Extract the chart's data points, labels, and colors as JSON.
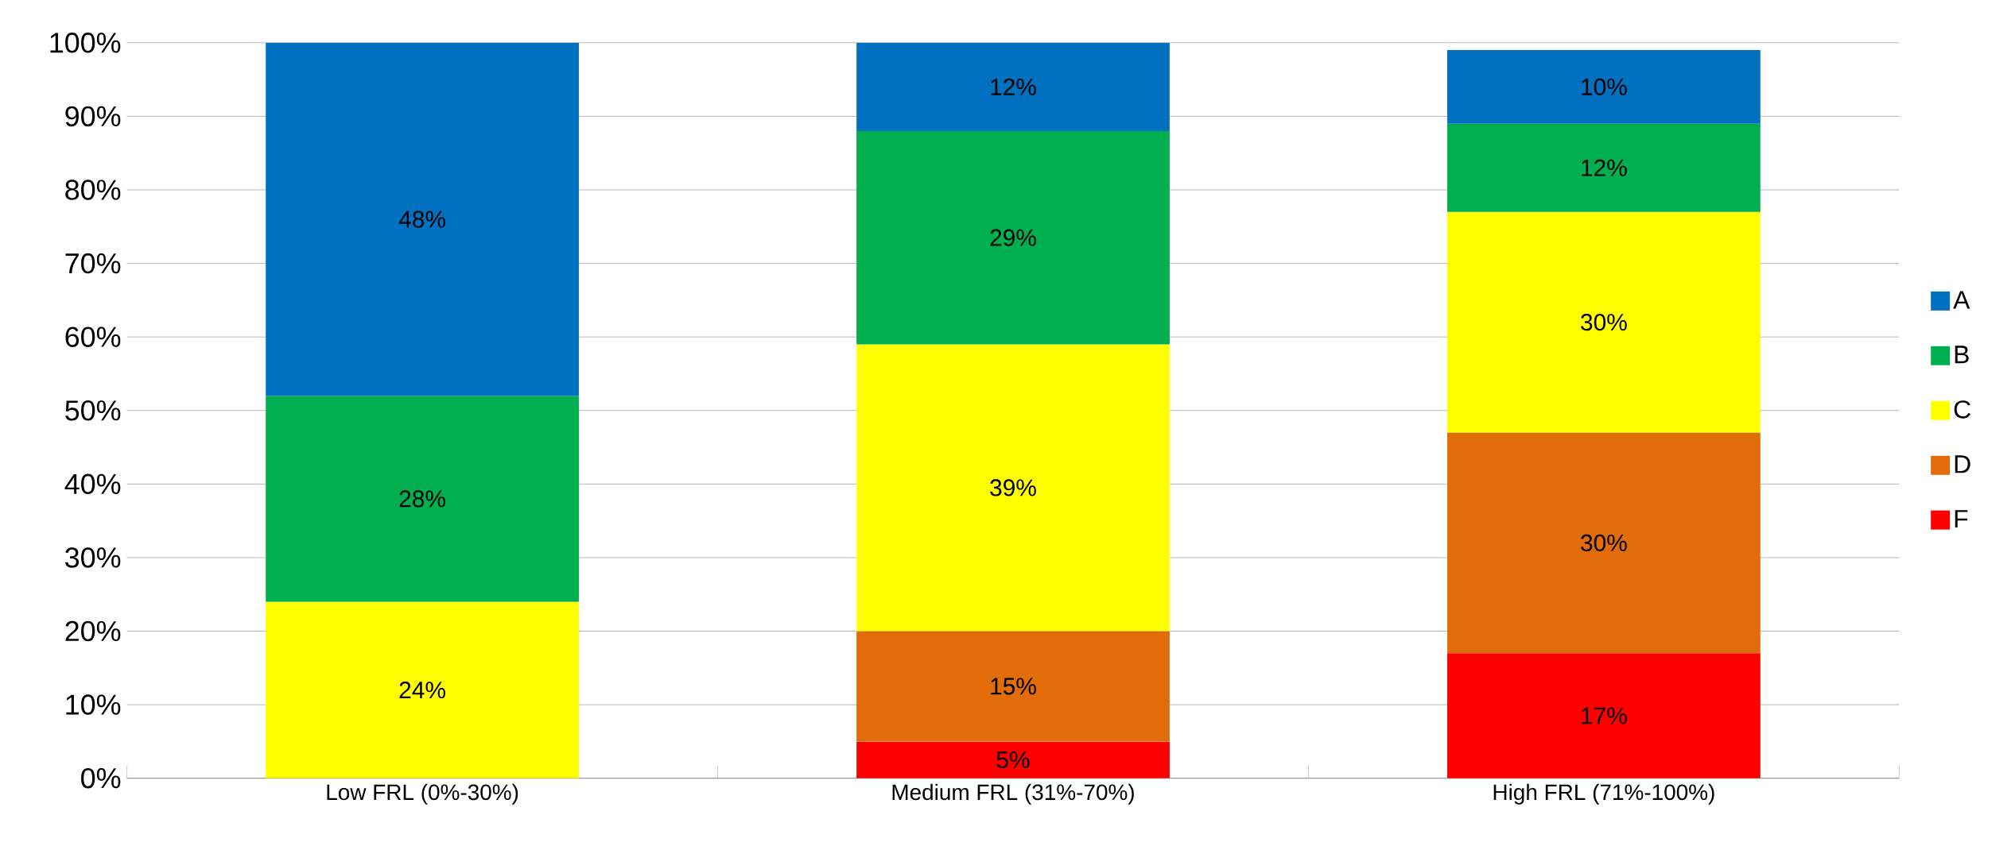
{
  "chart_data": {
    "type": "bar",
    "stacked": true,
    "categories": [
      "Low FRL (0%-30%)",
      "Medium FRL (31%-70%)",
      "High FRL (71%-100%)"
    ],
    "series": [
      {
        "name": "F",
        "color": "#ff0000",
        "values": [
          null,
          5,
          17
        ],
        "value_labels": [
          null,
          "5%",
          "17%"
        ]
      },
      {
        "name": "D",
        "color": "#e36c0a",
        "values": [
          null,
          15,
          30
        ],
        "value_labels": [
          null,
          "15%",
          "30%"
        ]
      },
      {
        "name": "C",
        "color": "#ffff00",
        "values": [
          24,
          39,
          30
        ],
        "value_labels": [
          "24%",
          "39%",
          "30%"
        ]
      },
      {
        "name": "B",
        "color": "#00b050",
        "values": [
          28,
          29,
          12
        ],
        "value_labels": [
          "28%",
          "29%",
          "12%"
        ]
      },
      {
        "name": "A",
        "color": "#0070c0",
        "values": [
          48,
          12,
          10
        ],
        "value_labels": [
          "48%",
          "12%",
          "10%"
        ]
      }
    ],
    "ylim": [
      0,
      100
    ],
    "yticks": [
      {
        "value": 0,
        "label": "0%"
      },
      {
        "value": 10,
        "label": "10%"
      },
      {
        "value": 20,
        "label": "20%"
      },
      {
        "value": 30,
        "label": "30%"
      },
      {
        "value": 40,
        "label": "40%"
      },
      {
        "value": 50,
        "label": "50%"
      },
      {
        "value": 60,
        "label": "60%"
      },
      {
        "value": 70,
        "label": "70%"
      },
      {
        "value": 80,
        "label": "80%"
      },
      {
        "value": 90,
        "label": "90%"
      },
      {
        "value": 100,
        "label": "100%"
      }
    ],
    "grid": "y",
    "legend": "right"
  }
}
